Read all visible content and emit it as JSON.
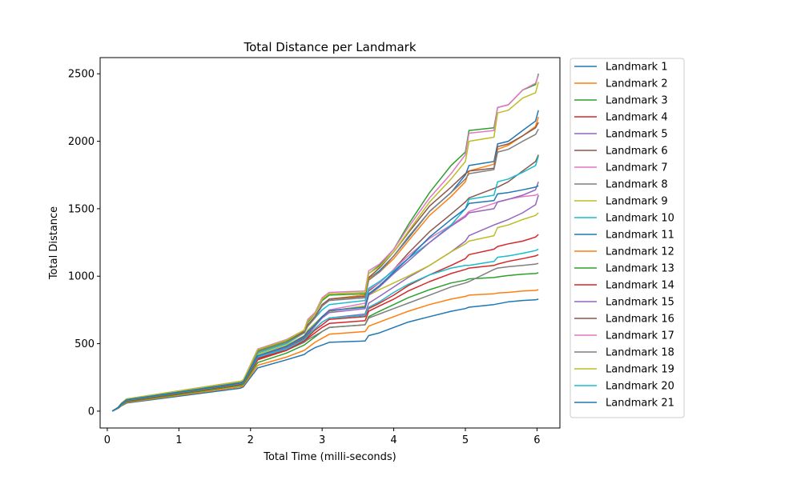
{
  "chart_data": {
    "type": "line",
    "title": "Total Distance per Landmark",
    "xlabel": "Total Time (milli-seconds)",
    "ylabel": "Total Distance",
    "xlim": [
      -0.1,
      6.32
    ],
    "ylim": [
      -125,
      2620
    ],
    "xticks": [
      0,
      1,
      2,
      3,
      4,
      5,
      6
    ],
    "yticks": [
      0,
      500,
      1000,
      1500,
      2000,
      2500
    ],
    "x": [
      0.07,
      0.15,
      0.2,
      0.27,
      1.86,
      1.9,
      2.1,
      2.5,
      2.75,
      2.8,
      2.9,
      3.0,
      3.1,
      3.6,
      3.65,
      3.8,
      4.0,
      4.2,
      4.5,
      4.8,
      5.0,
      5.05,
      5.4,
      5.45,
      5.6,
      5.8,
      5.98,
      6.02
    ],
    "grid": false,
    "legend_position": "outside-right",
    "colors": [
      "#1f77b4",
      "#ff7f0e",
      "#2ca02c",
      "#d62728",
      "#9467bd",
      "#8c564b",
      "#e377c2",
      "#7f7f7f",
      "#bcbd22",
      "#17becf"
    ],
    "series": [
      {
        "name": "Landmark 1",
        "values": [
          0,
          20,
          40,
          60,
          170,
          180,
          320,
          380,
          420,
          440,
          470,
          490,
          510,
          520,
          560,
          580,
          620,
          660,
          700,
          740,
          760,
          770,
          790,
          795,
          810,
          820,
          825,
          830
        ]
      },
      {
        "name": "Landmark 2",
        "values": [
          0,
          22,
          44,
          65,
          180,
          190,
          340,
          400,
          450,
          470,
          510,
          540,
          570,
          590,
          630,
          660,
          700,
          740,
          790,
          830,
          850,
          860,
          870,
          875,
          880,
          890,
          895,
          900
        ]
      },
      {
        "name": "Landmark 3",
        "values": [
          0,
          24,
          48,
          70,
          190,
          200,
          360,
          430,
          490,
          510,
          550,
          590,
          620,
          640,
          700,
          740,
          790,
          840,
          900,
          950,
          970,
          980,
          990,
          995,
          1005,
          1015,
          1020,
          1025
        ]
      },
      {
        "name": "Landmark 4",
        "values": [
          0,
          25,
          50,
          75,
          200,
          210,
          380,
          450,
          520,
          540,
          580,
          620,
          650,
          670,
          740,
          780,
          830,
          890,
          960,
          1020,
          1050,
          1060,
          1080,
          1090,
          1110,
          1130,
          1150,
          1160
        ]
      },
      {
        "name": "Landmark 5",
        "values": [
          0,
          25,
          52,
          78,
          200,
          210,
          390,
          460,
          530,
          560,
          610,
          660,
          690,
          720,
          800,
          850,
          920,
          990,
          1080,
          1180,
          1260,
          1300,
          1380,
          1390,
          1420,
          1470,
          1530,
          1600
        ]
      },
      {
        "name": "Landmark 6",
        "values": [
          0,
          26,
          54,
          80,
          205,
          215,
          400,
          470,
          540,
          570,
          630,
          700,
          740,
          780,
          890,
          950,
          1050,
          1170,
          1330,
          1460,
          1550,
          1580,
          1650,
          1660,
          1700,
          1780,
          1850,
          1900
        ]
      },
      {
        "name": "Landmark 7",
        "values": [
          0,
          26,
          55,
          82,
          210,
          220,
          410,
          480,
          560,
          600,
          650,
          700,
          750,
          800,
          900,
          950,
          1050,
          1150,
          1280,
          1380,
          1450,
          1480,
          1540,
          1550,
          1570,
          1590,
          1600,
          1610
        ]
      },
      {
        "name": "Landmark 8",
        "values": [
          0,
          26,
          55,
          80,
          200,
          210,
          390,
          450,
          510,
          530,
          560,
          590,
          620,
          640,
          690,
          720,
          760,
          800,
          860,
          920,
          950,
          960,
          1050,
          1060,
          1070,
          1080,
          1090,
          1095
        ]
      },
      {
        "name": "Landmark 9",
        "values": [
          0,
          27,
          56,
          84,
          210,
          220,
          420,
          490,
          560,
          600,
          650,
          700,
          740,
          780,
          860,
          900,
          950,
          1000,
          1080,
          1180,
          1240,
          1260,
          1300,
          1360,
          1380,
          1420,
          1450,
          1470
        ]
      },
      {
        "name": "Landmark 10",
        "values": [
          0,
          27,
          58,
          86,
          210,
          220,
          430,
          500,
          580,
          630,
          690,
          750,
          790,
          820,
          910,
          960,
          1040,
          1130,
          1250,
          1380,
          1500,
          1570,
          1600,
          1700,
          1720,
          1770,
          1820,
          1890
        ]
      },
      {
        "name": "Landmark 11",
        "values": [
          0,
          27,
          58,
          88,
          215,
          225,
          440,
          510,
          590,
          640,
          700,
          780,
          830,
          860,
          980,
          1040,
          1150,
          1280,
          1480,
          1620,
          1750,
          1820,
          1850,
          1980,
          2000,
          2080,
          2150,
          2230
        ]
      },
      {
        "name": "Landmark 12",
        "values": [
          0,
          27,
          58,
          88,
          215,
          225,
          440,
          510,
          590,
          640,
          700,
          780,
          830,
          860,
          980,
          1030,
          1130,
          1260,
          1450,
          1590,
          1700,
          1780,
          1830,
          1940,
          1970,
          2040,
          2110,
          2180
        ]
      },
      {
        "name": "Landmark 13",
        "values": [
          0,
          28,
          60,
          90,
          220,
          230,
          450,
          520,
          600,
          660,
          720,
          820,
          860,
          870,
          1020,
          1080,
          1200,
          1380,
          1620,
          1820,
          1920,
          2080,
          2100,
          2250,
          2270,
          2380,
          2420,
          2500
        ]
      },
      {
        "name": "Landmark 14",
        "values": [
          0,
          25,
          52,
          78,
          200,
          210,
          390,
          450,
          520,
          550,
          600,
          640,
          680,
          700,
          760,
          800,
          860,
          930,
          1010,
          1080,
          1130,
          1160,
          1200,
          1220,
          1240,
          1260,
          1290,
          1310
        ]
      },
      {
        "name": "Landmark 15",
        "values": [
          0,
          26,
          55,
          82,
          205,
          215,
          400,
          470,
          550,
          580,
          630,
          690,
          730,
          760,
          860,
          920,
          1020,
          1110,
          1250,
          1370,
          1440,
          1470,
          1500,
          1550,
          1570,
          1600,
          1640,
          1700
        ]
      },
      {
        "name": "Landmark 16",
        "values": [
          0,
          27,
          58,
          88,
          215,
          225,
          440,
          510,
          590,
          640,
          700,
          790,
          830,
          850,
          990,
          1060,
          1180,
          1320,
          1520,
          1660,
          1760,
          1780,
          1800,
          1960,
          1980,
          2040,
          2100,
          2140
        ]
      },
      {
        "name": "Landmark 17",
        "values": [
          0,
          28,
          60,
          90,
          220,
          230,
          460,
          530,
          600,
          680,
          730,
          840,
          880,
          890,
          1040,
          1090,
          1200,
          1360,
          1580,
          1760,
          1900,
          2060,
          2080,
          2250,
          2270,
          2380,
          2430,
          2490
        ]
      },
      {
        "name": "Landmark 18",
        "values": [
          0,
          27,
          58,
          88,
          215,
          225,
          440,
          510,
          580,
          630,
          690,
          780,
          820,
          840,
          970,
          1030,
          1150,
          1290,
          1480,
          1620,
          1720,
          1760,
          1790,
          1920,
          1940,
          2000,
          2050,
          2090
        ]
      },
      {
        "name": "Landmark 19",
        "values": [
          0,
          28,
          60,
          90,
          220,
          230,
          455,
          525,
          600,
          670,
          720,
          830,
          870,
          880,
          1020,
          1070,
          1180,
          1330,
          1550,
          1720,
          1850,
          2000,
          2030,
          2210,
          2230,
          2320,
          2360,
          2440
        ]
      },
      {
        "name": "Landmark 20",
        "values": [
          0,
          25,
          52,
          80,
          205,
          215,
          400,
          460,
          530,
          560,
          610,
          660,
          690,
          710,
          770,
          810,
          880,
          940,
          1010,
          1060,
          1080,
          1080,
          1110,
          1140,
          1150,
          1170,
          1190,
          1200
        ]
      },
      {
        "name": "Landmark 21",
        "values": [
          0,
          26,
          56,
          84,
          208,
          218,
          410,
          480,
          555,
          590,
          640,
          700,
          745,
          770,
          870,
          930,
          1030,
          1130,
          1290,
          1420,
          1500,
          1540,
          1560,
          1610,
          1620,
          1640,
          1660,
          1670
        ]
      }
    ]
  }
}
